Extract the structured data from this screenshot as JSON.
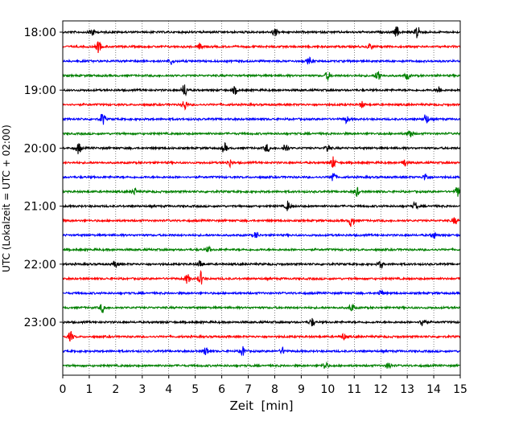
{
  "chart_data": {
    "type": "line",
    "title": "",
    "xlabel": "Zeit  [min]",
    "ylabel": "UTC (Lokalzeit = UTC + 02:00)",
    "xlim": [
      0,
      15
    ],
    "x_ticks": [
      0,
      1,
      2,
      3,
      4,
      5,
      6,
      7,
      8,
      9,
      10,
      11,
      12,
      13,
      14,
      15
    ],
    "x_tick_labels": [
      "0",
      "1",
      "2",
      "3",
      "4",
      "5",
      "6",
      "7",
      "8",
      "9",
      "10",
      "11",
      "12",
      "13",
      "14",
      "15"
    ],
    "vertical_gridlines": "dotted",
    "y_ticks": [
      {
        "label": "18:00",
        "row": 0
      },
      {
        "label": "19:00",
        "row": 4
      },
      {
        "label": "20:00",
        "row": 8
      },
      {
        "label": "21:00",
        "row": 12
      },
      {
        "label": "22:00",
        "row": 16
      },
      {
        "label": "23:00",
        "row": 20
      }
    ],
    "color_cycle": [
      "#000000",
      "#ff0000",
      "#0000ff",
      "#008000"
    ],
    "rows": [
      {
        "start": "18:00",
        "color": "#000000",
        "bursts": [
          {
            "t": 1.1,
            "a": 1.8
          },
          {
            "t": 8.0,
            "a": 1.4
          },
          {
            "t": 12.6,
            "a": 2.0
          },
          {
            "t": 13.4,
            "a": 3.2
          }
        ]
      },
      {
        "start": "18:15",
        "color": "#ff0000",
        "bursts": [
          {
            "t": 1.35,
            "a": 2.2
          },
          {
            "t": 5.2,
            "a": 1.2
          },
          {
            "t": 11.6,
            "a": 1.3
          }
        ]
      },
      {
        "start": "18:30",
        "color": "#0000ff",
        "bursts": [
          {
            "t": 4.1,
            "a": 1.2
          },
          {
            "t": 9.3,
            "a": 1.2
          }
        ]
      },
      {
        "start": "18:45",
        "color": "#008000",
        "bursts": [
          {
            "t": 10.0,
            "a": 1.6
          },
          {
            "t": 11.9,
            "a": 2.2
          },
          {
            "t": 13.0,
            "a": 1.3
          }
        ]
      },
      {
        "start": "19:00",
        "color": "#000000",
        "bursts": [
          {
            "t": 4.6,
            "a": 2.6
          },
          {
            "t": 6.5,
            "a": 1.4
          },
          {
            "t": 14.2,
            "a": 1.3
          }
        ]
      },
      {
        "start": "19:15",
        "color": "#ff0000",
        "bursts": [
          {
            "t": 4.6,
            "a": 2.0
          },
          {
            "t": 11.3,
            "a": 1.2
          }
        ]
      },
      {
        "start": "19:30",
        "color": "#0000ff",
        "bursts": [
          {
            "t": 1.5,
            "a": 2.4
          },
          {
            "t": 10.7,
            "a": 1.3
          },
          {
            "t": 13.7,
            "a": 2.2
          }
        ]
      },
      {
        "start": "19:45",
        "color": "#008000",
        "bursts": [
          {
            "t": 13.1,
            "a": 2.0
          }
        ]
      },
      {
        "start": "20:00",
        "color": "#000000",
        "bursts": [
          {
            "t": 0.6,
            "a": 2.2
          },
          {
            "t": 6.1,
            "a": 1.8
          },
          {
            "t": 7.7,
            "a": 1.5
          },
          {
            "t": 8.4,
            "a": 1.9
          },
          {
            "t": 10.0,
            "a": 1.5
          }
        ]
      },
      {
        "start": "20:15",
        "color": "#ff0000",
        "bursts": [
          {
            "t": 6.3,
            "a": 1.4
          },
          {
            "t": 10.2,
            "a": 2.2
          },
          {
            "t": 12.9,
            "a": 1.4
          }
        ]
      },
      {
        "start": "20:30",
        "color": "#0000ff",
        "bursts": [
          {
            "t": 10.2,
            "a": 2.1
          },
          {
            "t": 13.7,
            "a": 1.4
          }
        ]
      },
      {
        "start": "20:45",
        "color": "#008000",
        "bursts": [
          {
            "t": 2.7,
            "a": 1.2
          },
          {
            "t": 11.1,
            "a": 1.6
          },
          {
            "t": 14.9,
            "a": 2.0
          }
        ]
      },
      {
        "start": "21:00",
        "color": "#000000",
        "bursts": [
          {
            "t": 8.5,
            "a": 2.0
          },
          {
            "t": 13.3,
            "a": 1.5
          }
        ]
      },
      {
        "start": "21:15",
        "color": "#ff0000",
        "bursts": [
          {
            "t": 10.9,
            "a": 2.4
          },
          {
            "t": 14.8,
            "a": 1.3
          }
        ]
      },
      {
        "start": "21:30",
        "color": "#0000ff",
        "bursts": [
          {
            "t": 7.3,
            "a": 1.3
          },
          {
            "t": 14.0,
            "a": 1.3
          }
        ]
      },
      {
        "start": "21:45",
        "color": "#008000",
        "bursts": [
          {
            "t": 5.5,
            "a": 1.0
          }
        ]
      },
      {
        "start": "22:00",
        "color": "#000000",
        "bursts": [
          {
            "t": 2.0,
            "a": 1.3
          },
          {
            "t": 5.2,
            "a": 1.5
          },
          {
            "t": 12.0,
            "a": 1.3
          }
        ]
      },
      {
        "start": "22:15",
        "color": "#ff0000",
        "bursts": [
          {
            "t": 4.7,
            "a": 1.8
          },
          {
            "t": 5.2,
            "a": 2.6
          }
        ]
      },
      {
        "start": "22:30",
        "color": "#0000ff",
        "bursts": [
          {
            "t": 12.0,
            "a": 1.2
          }
        ]
      },
      {
        "start": "22:45",
        "color": "#008000",
        "bursts": [
          {
            "t": 1.5,
            "a": 1.8
          },
          {
            "t": 10.9,
            "a": 1.5
          }
        ]
      },
      {
        "start": "23:00",
        "color": "#000000",
        "bursts": [
          {
            "t": 9.4,
            "a": 1.6
          },
          {
            "t": 13.6,
            "a": 2.2
          }
        ]
      },
      {
        "start": "23:15",
        "color": "#ff0000",
        "bursts": [
          {
            "t": 0.3,
            "a": 1.8
          },
          {
            "t": 10.6,
            "a": 1.2
          }
        ]
      },
      {
        "start": "23:30",
        "color": "#0000ff",
        "bursts": [
          {
            "t": 5.4,
            "a": 1.6
          },
          {
            "t": 6.8,
            "a": 1.7
          },
          {
            "t": 8.3,
            "a": 1.2
          }
        ]
      },
      {
        "start": "23:45",
        "color": "#008000",
        "bursts": [
          {
            "t": 9.9,
            "a": 1.4
          },
          {
            "t": 12.3,
            "a": 1.3
          }
        ]
      }
    ]
  }
}
